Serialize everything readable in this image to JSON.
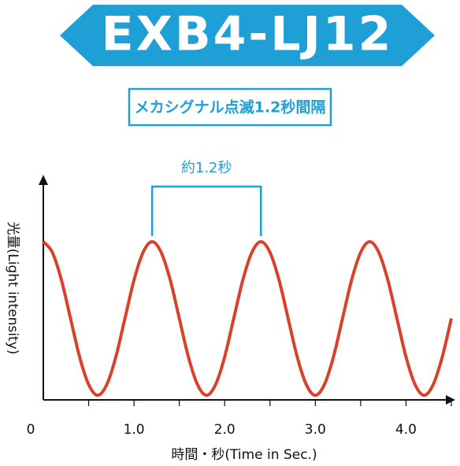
{
  "chart_data": {
    "type": "line",
    "title": "EXB4-LJ12",
    "subtitle": "メカシグナル点滅1.2秒間隔",
    "x_label": "時間・秒(Time in Sec.)",
    "y_label": "光量(Light intensity)",
    "annotation": {
      "text": "約1.2秒",
      "x": [
        1.2,
        2.4
      ]
    },
    "accent_color": "#1ea0d6",
    "xlim": [
      0,
      4.5
    ],
    "ylim": [
      -0.03,
      1.4
    ],
    "xticks": [
      {
        "value": 0,
        "label": "0"
      },
      {
        "value": 1,
        "label": "1.0"
      },
      {
        "value": 2,
        "label": "2.0"
      },
      {
        "value": 3,
        "label": "3.0"
      },
      {
        "value": 4,
        "label": "4.0"
      }
    ],
    "minor_xticks": [
      0.5,
      1.5,
      2.5,
      3.5,
      4.5
    ],
    "x": [
      0,
      0.1,
      0.2,
      0.3,
      0.4,
      0.5,
      0.6,
      0.7,
      0.8,
      0.9,
      1.0,
      1.1,
      1.2,
      1.3,
      1.4,
      1.5,
      1.6,
      1.7,
      1.8,
      1.9,
      2.0,
      2.1,
      2.2,
      2.3,
      2.4,
      2.5,
      2.6,
      2.7,
      2.8,
      2.9,
      3.0,
      3.1,
      3.2,
      3.3,
      3.4,
      3.5,
      3.6,
      3.7,
      3.8,
      3.9,
      4.0,
      4.1,
      4.2,
      4.3,
      4.4,
      4.5
    ],
    "series": [
      {
        "name": "光量",
        "color": "#d8412c",
        "values": [
          1,
          0.93,
          0.75,
          0.5,
          0.25,
          0.07,
          0,
          0.07,
          0.25,
          0.5,
          0.75,
          0.93,
          1,
          0.93,
          0.75,
          0.5,
          0.25,
          0.07,
          0,
          0.07,
          0.25,
          0.5,
          0.75,
          0.93,
          1,
          0.93,
          0.75,
          0.5,
          0.25,
          0.07,
          0,
          0.07,
          0.25,
          0.5,
          0.75,
          0.93,
          1,
          0.93,
          0.75,
          0.5,
          0.25,
          0.07,
          0,
          0.07,
          0.25,
          0.5
        ]
      }
    ]
  }
}
